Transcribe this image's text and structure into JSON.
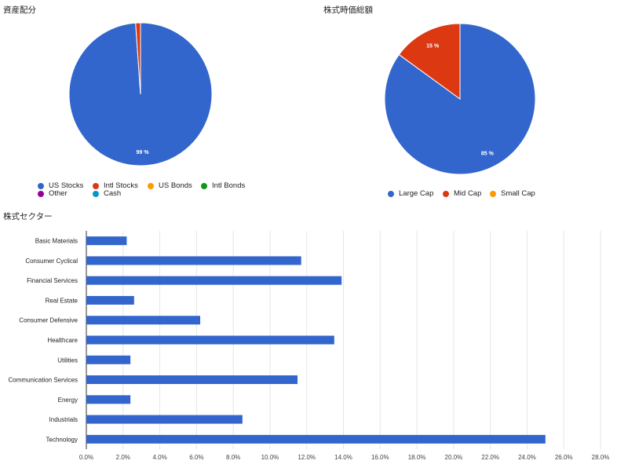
{
  "chart_data": [
    {
      "type": "pie",
      "title": "資産配分",
      "categories": [
        "US Stocks",
        "Intl Stocks",
        "US Bonds",
        "Intl Bonds",
        "Other",
        "Cash"
      ],
      "values": [
        98.9,
        1.1,
        0,
        0,
        0,
        0
      ],
      "slice_labels": [
        "99 %",
        "",
        "",
        "",
        "",
        ""
      ],
      "colors": [
        "#3366cc",
        "#dc3912",
        "#ff9900",
        "#109618",
        "#990099",
        "#0099c6"
      ],
      "legend_placement": "bottom"
    },
    {
      "type": "pie",
      "title": "株式時価総額",
      "categories": [
        "Large Cap",
        "Mid Cap",
        "Small Cap"
      ],
      "values": [
        85,
        15,
        0
      ],
      "slice_labels": [
        "85 %",
        "15 %",
        ""
      ],
      "colors": [
        "#3366cc",
        "#dc3912",
        "#ff9900"
      ],
      "legend_placement": "bottom"
    },
    {
      "type": "bar",
      "orientation": "horizontal",
      "title": "株式セクター",
      "categories": [
        "Basic Materials",
        "Consumer Cyclical",
        "Financial Services",
        "Real Estate",
        "Consumer Defensive",
        "Healthcare",
        "Utilities",
        "Communication Services",
        "Energy",
        "Industrials",
        "Technology"
      ],
      "values": [
        2.2,
        11.7,
        13.9,
        2.6,
        6.2,
        13.5,
        2.4,
        11.5,
        2.4,
        8.5,
        25.0
      ],
      "color": "#3366cc",
      "xlim": [
        0,
        28
      ],
      "xticks": [
        "0.0%",
        "2.0%",
        "4.0%",
        "6.0%",
        "8.0%",
        "10.0%",
        "12.0%",
        "14.0%",
        "16.0%",
        "18.0%",
        "20.0%",
        "22.0%",
        "24.0%",
        "26.0%",
        "28.0%"
      ],
      "grid": true
    }
  ]
}
